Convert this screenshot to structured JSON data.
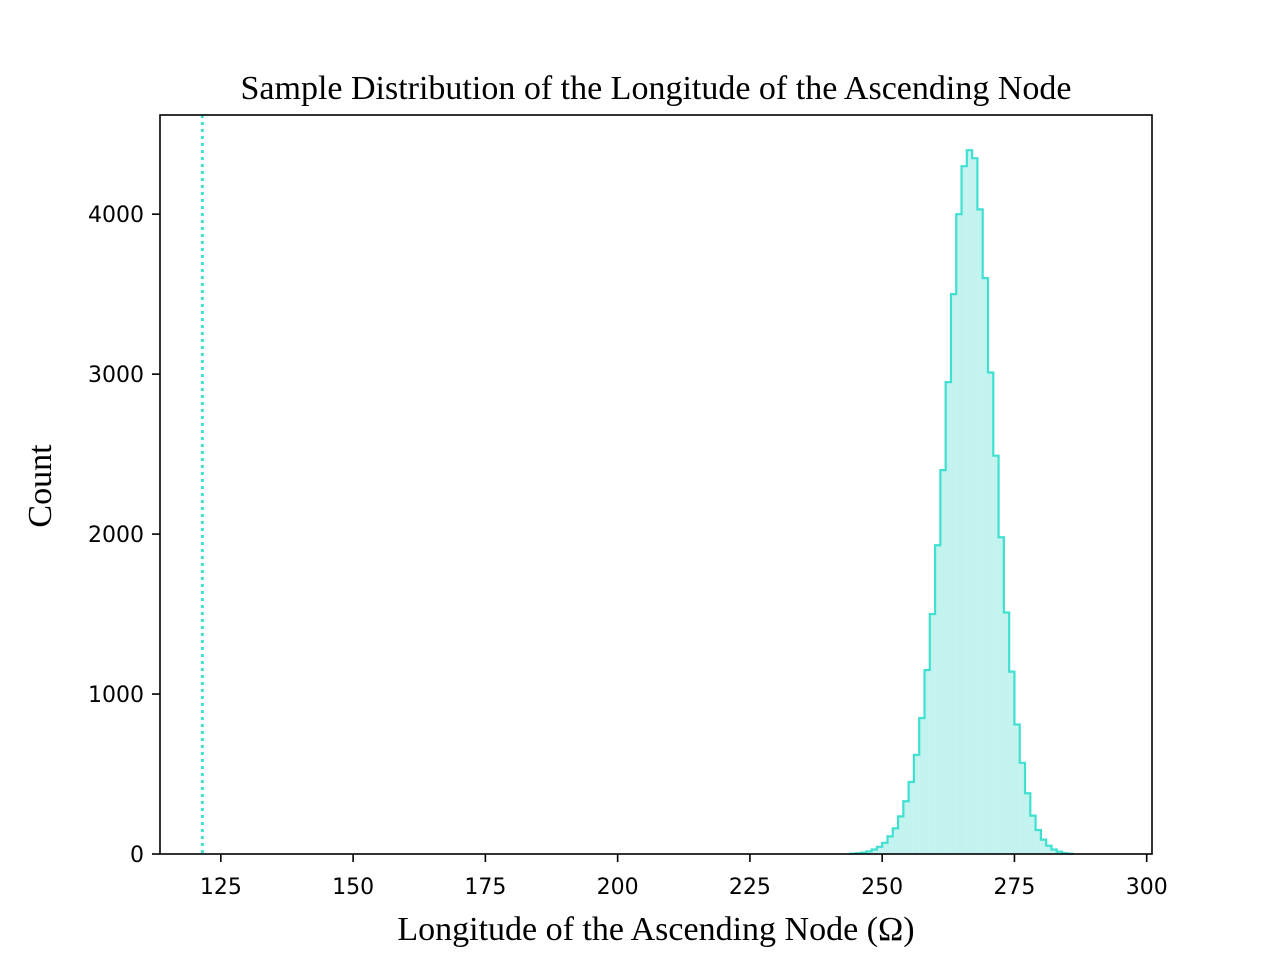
{
  "chart_data": {
    "type": "histogram",
    "title": "Sample Distribution of the Longitude of the Ascending Node",
    "xlabel": "Longitude of the Ascending Node (Ω)",
    "ylabel": "Count",
    "xlim": [
      113.5,
      301
    ],
    "ylim": [
      0,
      4620
    ],
    "x_ticks": [
      125,
      150,
      175,
      200,
      225,
      250,
      275,
      300
    ],
    "x_tick_labels": [
      "125",
      "150",
      "175",
      "200",
      "225",
      "250",
      "275",
      "300"
    ],
    "y_ticks": [
      0,
      1000,
      2000,
      3000,
      4000
    ],
    "y_tick_labels": [
      "0",
      "1000",
      "2000",
      "3000",
      "4000"
    ],
    "grid": false,
    "reference_line": {
      "x": 121.5,
      "style": "dotted"
    },
    "bin_width": 1,
    "bins": [
      [
        244,
        2
      ],
      [
        245,
        5
      ],
      [
        246,
        9
      ],
      [
        247,
        16
      ],
      [
        248,
        28
      ],
      [
        249,
        45
      ],
      [
        250,
        70
      ],
      [
        251,
        110
      ],
      [
        252,
        160
      ],
      [
        253,
        235
      ],
      [
        254,
        330
      ],
      [
        255,
        450
      ],
      [
        256,
        620
      ],
      [
        257,
        850
      ],
      [
        258,
        1150
      ],
      [
        259,
        1500
      ],
      [
        260,
        1930
      ],
      [
        261,
        2400
      ],
      [
        262,
        2950
      ],
      [
        263,
        3500
      ],
      [
        264,
        4000
      ],
      [
        265,
        4300
      ],
      [
        266,
        4400
      ],
      [
        267,
        4350
      ],
      [
        268,
        4030
      ],
      [
        269,
        3600
      ],
      [
        270,
        3010
      ],
      [
        271,
        2490
      ],
      [
        272,
        1980
      ],
      [
        273,
        1510
      ],
      [
        274,
        1140
      ],
      [
        275,
        810
      ],
      [
        276,
        570
      ],
      [
        277,
        380
      ],
      [
        278,
        240
      ],
      [
        279,
        150
      ],
      [
        280,
        90
      ],
      [
        281,
        52
      ],
      [
        282,
        28
      ],
      [
        283,
        14
      ],
      [
        284,
        6
      ],
      [
        285,
        2
      ]
    ],
    "colors": {
      "line": "#40e0d0",
      "fill": "#c2f3ee"
    }
  }
}
